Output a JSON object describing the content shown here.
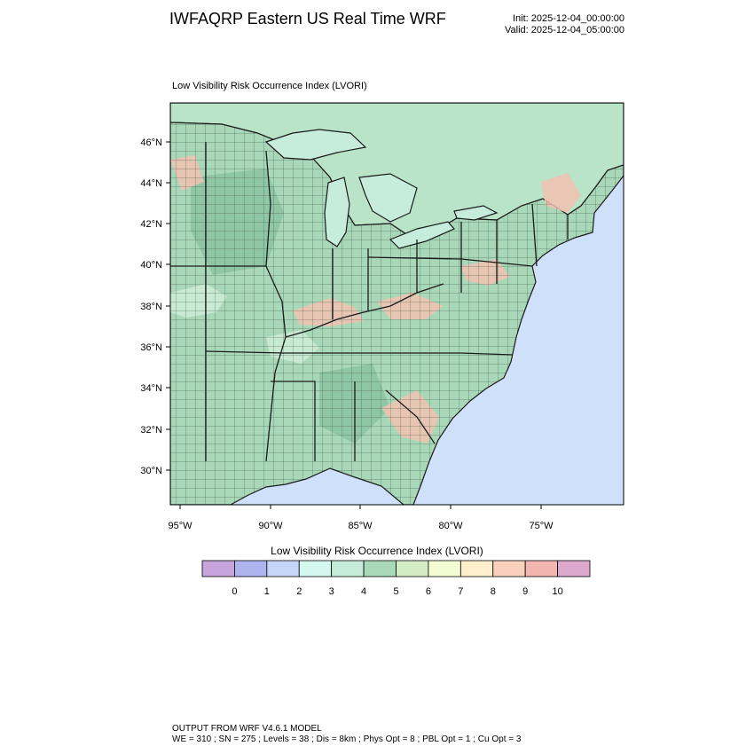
{
  "header": {
    "title": "IWFAQRP Eastern US Real Time WRF",
    "init": "Init: 2025-12-04_00:00:00",
    "valid": "Valid: 2025-12-04_05:00:00"
  },
  "map": {
    "subtitle": "Low Visibility Risk Occurrence Index   (LVORI)",
    "lat_labels": [
      "46°N",
      "44°N",
      "42°N",
      "40°N",
      "38°N",
      "36°N",
      "34°N",
      "32°N",
      "30°N"
    ],
    "lon_labels": [
      "95°W",
      "90°W",
      "85°W",
      "80°W",
      "75°W"
    ],
    "colors": {
      "ocean": "#cfe0fb",
      "land": "#a8d8b8",
      "land_dark": "#8fc6a4",
      "land_light": "#c8ead2",
      "canada": "#b9e4c8",
      "hot": "#f2c2b2",
      "lake": "#c6ecdc",
      "border": "#1a1a1a"
    }
  },
  "colorbar": {
    "title": "Low Visibility Risk Occurrence Index  (LVORI)",
    "labels": [
      "0",
      "1",
      "2",
      "3",
      "4",
      "5",
      "6",
      "7",
      "8",
      "9",
      "10"
    ],
    "colors": [
      "#c8a4dc",
      "#aeb4ee",
      "#c6d6f8",
      "#d4f8f0",
      "#c4ecd8",
      "#a8d8b8",
      "#d4ecc4",
      "#f4fcd4",
      "#fef0cc",
      "#f8d0bc",
      "#f2b6b0",
      "#dca8cc"
    ]
  },
  "footer": {
    "line1": "OUTPUT FROM WRF V4.6.1 MODEL",
    "line2": "WE = 310 ; SN = 275 ; Levels = 38 ; Dis = 8km ; Phys Opt = 8 ; PBL Opt = 1 ; Cu Opt = 3"
  }
}
